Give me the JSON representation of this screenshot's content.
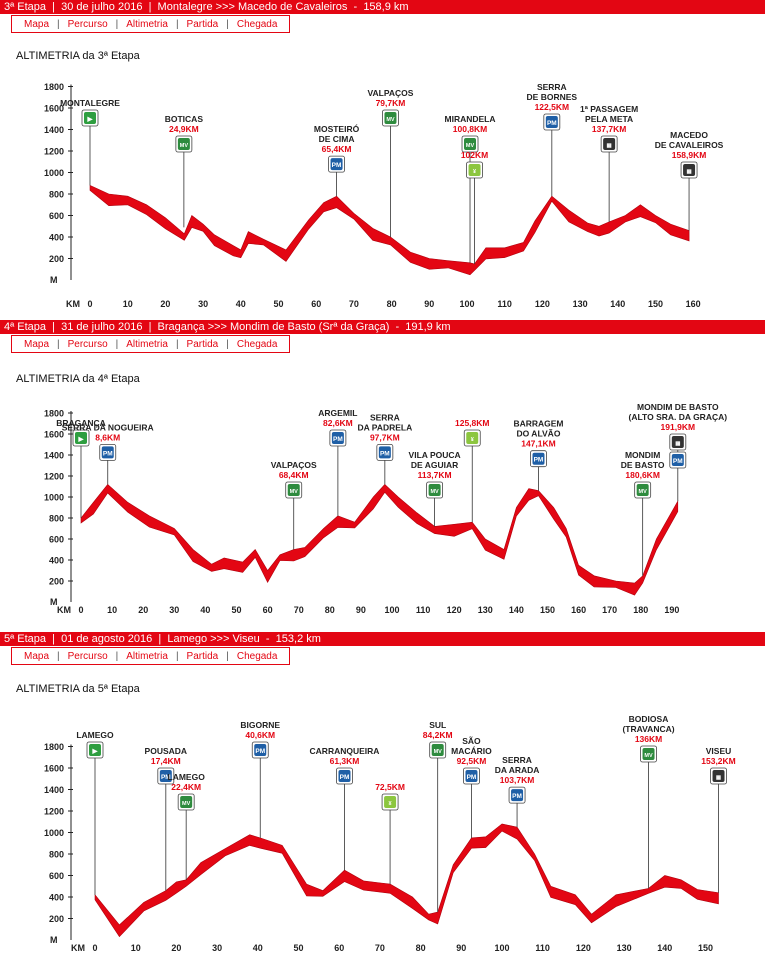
{
  "colors": {
    "accent": "#e30613",
    "profile": "#e30613",
    "mv": "#2e8b3e",
    "pm": "#1f5fa6",
    "start": "#2e9e40"
  },
  "nav_labels": [
    "Mapa",
    "Percurso",
    "Altimetria",
    "Partida",
    "Chegada"
  ],
  "stages": [
    {
      "header": {
        "stage": "3ª Etapa",
        "date": "30 de julho 2016",
        "route": "Montalegre  >>>  Macedo de Cavaleiros",
        "distance": "158,9 km"
      },
      "chart_title": "ALTIMETRIA da 3ª Etapa",
      "chart_data": {
        "type": "area",
        "title": "ALTIMETRIA da 3ª Etapa",
        "xlabel": "KM",
        "ylabel": "M",
        "xlim": [
          0,
          160
        ],
        "ylim": [
          0,
          1800
        ],
        "xticks": [
          0,
          10,
          20,
          30,
          40,
          50,
          60,
          70,
          80,
          90,
          100,
          110,
          120,
          130,
          140,
          150,
          160
        ],
        "yticks": [
          200,
          400,
          600,
          800,
          1000,
          1200,
          1400,
          1600,
          1800
        ],
        "profile": [
          [
            0,
            880
          ],
          [
            5,
            800
          ],
          [
            10,
            780
          ],
          [
            15,
            700
          ],
          [
            20,
            580
          ],
          [
            25,
            430
          ],
          [
            27,
            600
          ],
          [
            30,
            520
          ],
          [
            33,
            420
          ],
          [
            38,
            320
          ],
          [
            40,
            280
          ],
          [
            42,
            450
          ],
          [
            46,
            380
          ],
          [
            52,
            280
          ],
          [
            58,
            560
          ],
          [
            62,
            720
          ],
          [
            65.4,
            780
          ],
          [
            70,
            620
          ],
          [
            75,
            480
          ],
          [
            79.7,
            400
          ],
          [
            85,
            260
          ],
          [
            90,
            200
          ],
          [
            95,
            180
          ],
          [
            100.8,
            160
          ],
          [
            102,
            150
          ],
          [
            105,
            300
          ],
          [
            110,
            300
          ],
          [
            115,
            350
          ],
          [
            118,
            550
          ],
          [
            122.5,
            780
          ],
          [
            127,
            650
          ],
          [
            132,
            530
          ],
          [
            135,
            500
          ],
          [
            137.7,
            540
          ],
          [
            142,
            600
          ],
          [
            146,
            700
          ],
          [
            150,
            600
          ],
          [
            154,
            520
          ],
          [
            158.9,
            460
          ]
        ],
        "markers": [
          {
            "km": 0,
            "alt": 880,
            "icon": "start",
            "name": "MONTALEGRE",
            "km_label": ""
          },
          {
            "km": 24.9,
            "alt": 490,
            "icon": "MV",
            "name": "BOTICAS",
            "km_label": "24,9KM"
          },
          {
            "km": 65.4,
            "alt": 780,
            "icon": "PM",
            "name": "MOSTEIRÓ\nDE CIMA",
            "km_label": "65,4KM"
          },
          {
            "km": 79.7,
            "alt": 400,
            "icon": "MV",
            "name": "VALPAÇOS",
            "km_label": "79,7KM"
          },
          {
            "km": 100.8,
            "alt": 160,
            "icon": "MV",
            "name": "MIRANDELA",
            "km_label": "100,8KM"
          },
          {
            "km": 102,
            "alt": 150,
            "icon": "feed",
            "name": "",
            "km_label": "102KM"
          },
          {
            "km": 122.5,
            "alt": 780,
            "icon": "PM",
            "name": "SERRA\nDE BORNES",
            "km_label": "122,5KM"
          },
          {
            "km": 137.7,
            "alt": 540,
            "icon": "finish",
            "name": "1ª PASSAGEM\nPELA META",
            "km_label": "137,7KM"
          },
          {
            "km": 158.9,
            "alt": 460,
            "icon": "finish",
            "name": "MACEDO\nDE CAVALEIROS",
            "km_label": "158,9KM"
          }
        ]
      }
    },
    {
      "header": {
        "stage": "4ª Etapa",
        "date": "31 de julho 2016",
        "route": "Bragança  >>>  Mondim de Basto (Srª da Graça)",
        "distance": "191,9 km"
      },
      "chart_title": "ALTIMETRIA da 4ª Etapa",
      "chart_data": {
        "type": "area",
        "title": "ALTIMETRIA da 4ª Etapa",
        "xlabel": "KM",
        "ylabel": "M",
        "xlim": [
          0,
          190
        ],
        "ylim": [
          0,
          1800
        ],
        "xticks": [
          0,
          10,
          20,
          30,
          40,
          50,
          60,
          70,
          80,
          90,
          100,
          110,
          120,
          130,
          140,
          150,
          160,
          170,
          180,
          190
        ],
        "yticks": [
          200,
          400,
          600,
          800,
          1000,
          1200,
          1400,
          1600,
          1800
        ],
        "profile": [
          [
            0,
            800
          ],
          [
            4,
            950
          ],
          [
            8.6,
            1120
          ],
          [
            15,
            950
          ],
          [
            22,
            820
          ],
          [
            30,
            700
          ],
          [
            36,
            500
          ],
          [
            42,
            360
          ],
          [
            46,
            420
          ],
          [
            52,
            380
          ],
          [
            56,
            500
          ],
          [
            60,
            300
          ],
          [
            64,
            450
          ],
          [
            68.4,
            500
          ],
          [
            72,
            520
          ],
          [
            78,
            700
          ],
          [
            82.6,
            820
          ],
          [
            88,
            760
          ],
          [
            94,
            1000
          ],
          [
            97.7,
            1120
          ],
          [
            102,
            1000
          ],
          [
            108,
            850
          ],
          [
            113.7,
            720
          ],
          [
            120,
            740
          ],
          [
            125.8,
            760
          ],
          [
            130,
            600
          ],
          [
            136,
            500
          ],
          [
            140,
            900
          ],
          [
            144,
            1080
          ],
          [
            147.1,
            1060
          ],
          [
            152,
            900
          ],
          [
            156,
            700
          ],
          [
            160,
            350
          ],
          [
            165,
            250
          ],
          [
            172,
            200
          ],
          [
            178,
            180
          ],
          [
            180.6,
            250
          ],
          [
            185,
            600
          ],
          [
            191.9,
            960
          ]
        ],
        "markers": [
          {
            "km": 0,
            "alt": 800,
            "icon": "start",
            "name": "BRAGANÇA",
            "km_label": ""
          },
          {
            "km": 8.6,
            "alt": 1120,
            "icon": "PM",
            "name": "SERRA DA NOGUEIRA",
            "km_label": "8,6KM"
          },
          {
            "km": 68.4,
            "alt": 500,
            "icon": "MV",
            "name": "VALPAÇOS",
            "km_label": "68,4KM"
          },
          {
            "km": 82.6,
            "alt": 820,
            "icon": "PM",
            "name": "ARGEMIL",
            "km_label": "82,6KM"
          },
          {
            "km": 97.7,
            "alt": 1120,
            "icon": "PM",
            "name": "SERRA\nDA PADRELA",
            "km_label": "97,7KM"
          },
          {
            "km": 113.7,
            "alt": 720,
            "icon": "MV",
            "name": "VILA POUCA\nDE AGUIAR",
            "km_label": "113,7KM"
          },
          {
            "km": 125.8,
            "alt": 760,
            "icon": "feed",
            "name": "",
            "km_label": "125,8KM"
          },
          {
            "km": 147.1,
            "alt": 1060,
            "icon": "PM",
            "name": "BARRAGEM\nDO ALVÃO",
            "km_label": "147,1KM"
          },
          {
            "km": 180.6,
            "alt": 250,
            "icon": "MV",
            "name": "MONDIM\nDE BASTO",
            "km_label": "180,6KM"
          },
          {
            "km": 191.9,
            "alt": 960,
            "icon": "finish_pm",
            "name": "MONDIM DE BASTO\n(ALTO SRA. DA GRAÇA)",
            "km_label": "191,9KM"
          }
        ]
      }
    },
    {
      "header": {
        "stage": "5ª Etapa",
        "date": "01 de agosto 2016",
        "route": "Lamego  >>>  Viseu",
        "distance": "153,2 km"
      },
      "chart_title": "ALTIMETRIA da 5ª Etapa",
      "chart_data": {
        "type": "area",
        "title": "ALTIMETRIA da 5ª Etapa",
        "xlabel": "KM",
        "ylabel": "M",
        "xlim": [
          0,
          150
        ],
        "ylim": [
          0,
          1800
        ],
        "xticks": [
          0,
          10,
          20,
          30,
          40,
          50,
          60,
          70,
          80,
          90,
          100,
          110,
          120,
          130,
          140,
          150
        ],
        "yticks": [
          200,
          400,
          600,
          800,
          1000,
          1200,
          1400,
          1600,
          1800
        ],
        "profile": [
          [
            0,
            420
          ],
          [
            6,
            140
          ],
          [
            12,
            350
          ],
          [
            17.4,
            460
          ],
          [
            20,
            540
          ],
          [
            22.4,
            560
          ],
          [
            26,
            720
          ],
          [
            32,
            850
          ],
          [
            38,
            980
          ],
          [
            40.6,
            950
          ],
          [
            46,
            880
          ],
          [
            52,
            520
          ],
          [
            56,
            460
          ],
          [
            61.3,
            650
          ],
          [
            66,
            550
          ],
          [
            72.5,
            520
          ],
          [
            78,
            400
          ],
          [
            82,
            240
          ],
          [
            84.2,
            260
          ],
          [
            88,
            700
          ],
          [
            92.5,
            950
          ],
          [
            96,
            960
          ],
          [
            100,
            1080
          ],
          [
            103.7,
            1050
          ],
          [
            108,
            800
          ],
          [
            112,
            500
          ],
          [
            118,
            420
          ],
          [
            122,
            240
          ],
          [
            128,
            420
          ],
          [
            136,
            480
          ],
          [
            140,
            600
          ],
          [
            144,
            560
          ],
          [
            148,
            470
          ],
          [
            153.2,
            440
          ]
        ],
        "markers": [
          {
            "km": 0,
            "alt": 420,
            "icon": "start",
            "name": "LAMEGO",
            "km_label": ""
          },
          {
            "km": 17.4,
            "alt": 460,
            "icon": "PM",
            "name": "POUSADA",
            "km_label": "17,4KM"
          },
          {
            "km": 22.4,
            "alt": 560,
            "icon": "MV",
            "name": "LAMEGO",
            "km_label": "22,4KM"
          },
          {
            "km": 40.6,
            "alt": 950,
            "icon": "PM",
            "name": "BIGORNE",
            "km_label": "40,6KM"
          },
          {
            "km": 61.3,
            "alt": 650,
            "icon": "PM",
            "name": "CARRANQUEIRA",
            "km_label": "61,3KM"
          },
          {
            "km": 72.5,
            "alt": 520,
            "icon": "feed",
            "name": "",
            "km_label": "72,5KM"
          },
          {
            "km": 84.2,
            "alt": 260,
            "icon": "MV",
            "name": "SUL",
            "km_label": "84,2KM"
          },
          {
            "km": 92.5,
            "alt": 950,
            "icon": "PM",
            "name": "SÃO\nMACÁRIO",
            "km_label": "92,5KM"
          },
          {
            "km": 103.7,
            "alt": 1050,
            "icon": "PM",
            "name": "SERRA\nDA ARADA",
            "km_label": "103,7KM"
          },
          {
            "km": 136,
            "alt": 480,
            "icon": "MV",
            "name": "BODIOSA\n(TRAVANCA)",
            "km_label": "136KM"
          },
          {
            "km": 153.2,
            "alt": 440,
            "icon": "finish",
            "name": "VISEU",
            "km_label": "153,2KM"
          }
        ]
      }
    }
  ]
}
